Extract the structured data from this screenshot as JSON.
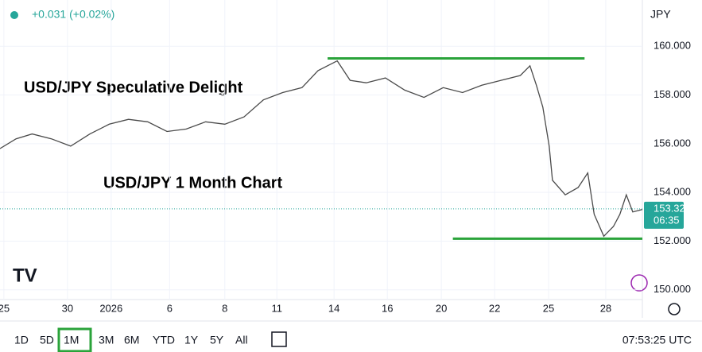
{
  "header": {
    "change": "+0.031 (+0.02%)",
    "currency": "JPY"
  },
  "chart_data": {
    "type": "line",
    "annotations": [
      "USD/JPY Speculative Delight",
      "USD/JPY 1 Month Chart"
    ],
    "x": [
      0,
      2.5,
      5,
      8,
      11,
      14,
      17,
      20,
      23,
      26,
      29,
      32,
      35,
      38,
      41,
      44,
      47,
      49.5,
      52.5,
      54.5,
      57,
      60,
      63,
      66,
      69,
      72,
      75,
      78,
      81,
      82.5,
      83.5,
      84.5,
      85.5,
      86,
      88,
      90,
      91.5,
      92.5,
      94,
      95.5,
      96.5,
      97.5,
      98.5,
      100
    ],
    "series": [
      {
        "color": "#4a4a4a",
        "values": [
          155.8,
          156.2,
          156.4,
          156.2,
          155.9,
          156.4,
          156.8,
          157.0,
          156.9,
          156.5,
          156.6,
          156.9,
          156.8,
          157.1,
          157.8,
          158.1,
          158.3,
          159.0,
          159.4,
          158.6,
          158.5,
          158.7,
          158.2,
          157.9,
          158.3,
          158.1,
          158.4,
          158.6,
          158.8,
          159.2,
          158.4,
          157.5,
          155.9,
          154.5,
          153.9,
          154.2,
          154.8,
          153.1,
          152.2,
          152.6,
          153.1,
          153.9,
          153.2,
          153.3
        ]
      }
    ],
    "levels": [
      {
        "value": 159.5,
        "x": [
          51,
          91
        ],
        "color": "#2aa33a"
      },
      {
        "value": 152.1,
        "x": [
          70.5,
          100
        ],
        "color": "#2aa33a"
      }
    ],
    "last_price": 153.324,
    "countdown": "06:35",
    "xlim": [
      0,
      100
    ],
    "xticks": [
      {
        "value": 0.6,
        "label": "25"
      },
      {
        "value": 10.5,
        "label": "30"
      },
      {
        "value": 17.3,
        "label": "2026"
      },
      {
        "value": 26.4,
        "label": "6"
      },
      {
        "value": 35,
        "label": "8"
      },
      {
        "value": 43.1,
        "label": "11"
      },
      {
        "value": 52,
        "label": "14"
      },
      {
        "value": 60.3,
        "label": "16"
      },
      {
        "value": 68.7,
        "label": "20"
      },
      {
        "value": 77,
        "label": "22"
      },
      {
        "value": 85.4,
        "label": "25"
      },
      {
        "value": 94.3,
        "label": "28"
      }
    ],
    "ylim": [
      149.6,
      161.9
    ],
    "yticks": [
      {
        "value": 150,
        "label": "150.000"
      },
      {
        "value": 152,
        "label": "152.000"
      },
      {
        "value": 154,
        "label": "154.000"
      },
      {
        "value": 156,
        "label": "156.000"
      },
      {
        "value": 158,
        "label": "158.000"
      },
      {
        "value": 160,
        "label": "160.000"
      }
    ],
    "grid": true
  },
  "toolbar": {
    "ranges": [
      "1D",
      "5D",
      "1M",
      "3M",
      "6M",
      "YTD",
      "1Y",
      "5Y",
      "All"
    ],
    "selected": 2,
    "time": "07:53:25 UTC"
  }
}
